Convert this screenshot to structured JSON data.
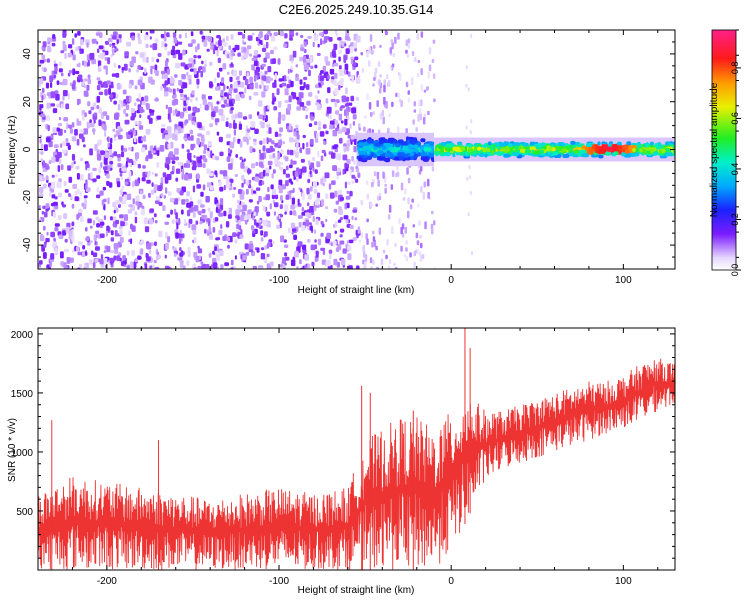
{
  "figure": {
    "title": "C2E6.2025.249.10.35.G14"
  },
  "chart_data": [
    {
      "type": "heatmap",
      "xlabel": "Height of straight line (km)",
      "ylabel": "Frequency (Hz)",
      "xlim": [
        -240,
        130
      ],
      "ylim": [
        -50,
        50
      ],
      "xticks": [
        -200,
        -100,
        0,
        100
      ],
      "yticks": [
        -40,
        -20,
        0,
        20,
        40
      ],
      "colorbar": {
        "label": "Normalized spectral amplitude",
        "range": [
          0.0,
          0.95
        ],
        "ticks": [
          0.0,
          0.2,
          0.4,
          0.6,
          0.8
        ]
      },
      "regions": [
        {
          "x_range": [
            -240,
            -55
          ],
          "description": "broadband noise",
          "amplitude": [
            0.0,
            0.12
          ]
        },
        {
          "x_range": [
            -55,
            -10
          ],
          "freq_band": [
            -5,
            5
          ],
          "amplitude": [
            0.2,
            0.6
          ]
        },
        {
          "x_range": [
            -10,
            130
          ],
          "freq_band": [
            -3,
            3
          ],
          "amplitude": [
            0.3,
            0.95
          ],
          "peak_x": 90
        }
      ]
    },
    {
      "type": "line",
      "xlabel": "Height of straight line (km)",
      "ylabel": "SNR (10 * v/v)",
      "xlim": [
        -240,
        130
      ],
      "ylim": [
        0,
        2050
      ],
      "xticks": [
        -200,
        -100,
        0,
        100
      ],
      "yticks": [
        500,
        1000,
        1500,
        2000
      ],
      "series": [
        {
          "name": "SNR",
          "color": "#ee3333",
          "x": [
            -240,
            -220,
            -200,
            -180,
            -160,
            -140,
            -120,
            -100,
            -80,
            -60,
            -50,
            -40,
            -30,
            -20,
            -10,
            0,
            10,
            20,
            30,
            40,
            50,
            60,
            70,
            80,
            90,
            100,
            110,
            120,
            130
          ],
          "y_low": [
            0,
            0,
            0,
            0,
            0,
            0,
            0,
            0,
            0,
            0,
            0,
            0,
            0,
            0,
            0,
            150,
            450,
            750,
            850,
            900,
            950,
            1000,
            1050,
            1100,
            1150,
            1200,
            1250,
            1350,
            1400
          ],
          "y_high": [
            650,
            800,
            750,
            700,
            650,
            600,
            650,
            700,
            650,
            700,
            1100,
            1200,
            1300,
            1300,
            1200,
            1350,
            1500,
            1350,
            1350,
            1400,
            1450,
            1500,
            1550,
            1600,
            1600,
            1650,
            1750,
            1800,
            1750
          ],
          "spikes": [
            [
              -232,
              1270
            ],
            [
              -170,
              1100
            ],
            [
              -52,
              1560
            ],
            [
              -47,
              1500
            ],
            [
              -22,
              1350
            ],
            [
              8,
              2060
            ],
            [
              11,
              1880
            ]
          ]
        }
      ]
    }
  ]
}
